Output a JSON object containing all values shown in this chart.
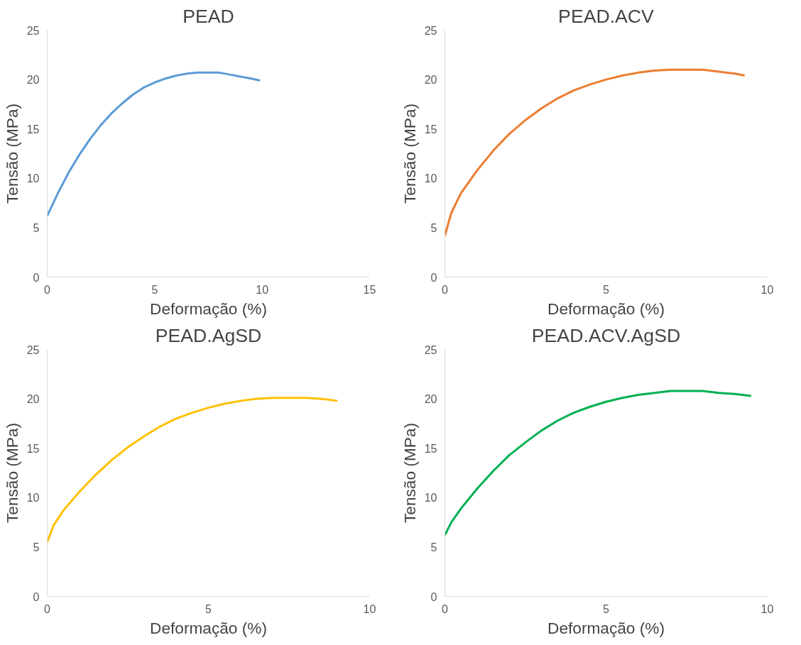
{
  "chart_data": [
    {
      "type": "line",
      "title": "PEAD",
      "xlabel": "Deformação (%)",
      "ylabel": "Tensão (MPa)",
      "xlim": [
        0,
        15
      ],
      "xticks": [
        0,
        5,
        10,
        15
      ],
      "ylim": [
        0,
        25
      ],
      "yticks": [
        0,
        5,
        10,
        15,
        20,
        25
      ],
      "grid": false,
      "marker": "none",
      "line_style": "solid",
      "series": [
        {
          "color": "#5b9bd5",
          "x": [
            0,
            0.5,
            1,
            1.5,
            2,
            2.5,
            3,
            3.5,
            4,
            4.5,
            5,
            5.5,
            6,
            6.5,
            7,
            7.5,
            8,
            8.5,
            9,
            9.5,
            9.9
          ],
          "values": [
            6.2,
            8.5,
            10.6,
            12.4,
            14.0,
            15.4,
            16.6,
            17.6,
            18.5,
            19.2,
            19.7,
            20.1,
            20.4,
            20.6,
            20.7,
            20.7,
            20.7,
            20.5,
            20.3,
            20.1,
            19.9
          ]
        }
      ]
    },
    {
      "type": "line",
      "title": "PEAD.ACV",
      "xlabel": "Deformação (%)",
      "ylabel": "Tensão (MPa)",
      "xlim": [
        0,
        10
      ],
      "xticks": [
        0,
        5,
        10
      ],
      "ylim": [
        0,
        25
      ],
      "yticks": [
        0,
        5,
        10,
        15,
        20,
        25
      ],
      "grid": false,
      "marker": "none",
      "line_style": "solid",
      "series": [
        {
          "color": "#ed7d31",
          "x": [
            0,
            0.2,
            0.5,
            1,
            1.5,
            2,
            2.5,
            3,
            3.5,
            4,
            4.5,
            5,
            5.5,
            6,
            6.5,
            7,
            7.5,
            8,
            8.5,
            9,
            9.3
          ],
          "values": [
            4.2,
            6.5,
            8.5,
            10.8,
            12.8,
            14.5,
            15.9,
            17.1,
            18.1,
            18.9,
            19.5,
            20.0,
            20.4,
            20.7,
            20.9,
            21.0,
            21.0,
            21.0,
            20.8,
            20.6,
            20.4
          ]
        }
      ]
    },
    {
      "type": "line",
      "title": "PEAD.AgSD",
      "xlabel": "Deformação (%)",
      "ylabel": "Tensão (MPa)",
      "xlim": [
        0,
        10
      ],
      "xticks": [
        0,
        5,
        10
      ],
      "ylim": [
        0,
        25
      ],
      "yticks": [
        0,
        5,
        10,
        15,
        20,
        25
      ],
      "grid": false,
      "marker": "none",
      "line_style": "solid",
      "series": [
        {
          "color": "#ffc000",
          "x": [
            0,
            0.2,
            0.5,
            1,
            1.5,
            2,
            2.5,
            3,
            3.5,
            4,
            4.5,
            5,
            5.5,
            6,
            6.5,
            7,
            7.5,
            8,
            8.5,
            9
          ],
          "values": [
            5.5,
            7.2,
            8.7,
            10.6,
            12.3,
            13.8,
            15.1,
            16.2,
            17.2,
            18.0,
            18.6,
            19.1,
            19.5,
            19.8,
            20.0,
            20.1,
            20.1,
            20.1,
            20.0,
            19.8
          ]
        }
      ]
    },
    {
      "type": "line",
      "title": "PEAD.ACV.AgSD",
      "xlabel": "Deformação (%)",
      "ylabel": "Tensão (MPa)",
      "xlim": [
        0,
        10
      ],
      "xticks": [
        0,
        5,
        10
      ],
      "ylim": [
        0,
        25
      ],
      "yticks": [
        0,
        5,
        10,
        15,
        20,
        25
      ],
      "grid": false,
      "marker": "none",
      "line_style": "solid",
      "series": [
        {
          "color": "#00b050",
          "x": [
            0,
            0.2,
            0.5,
            1,
            1.5,
            2,
            2.5,
            3,
            3.5,
            4,
            4.5,
            5,
            5.5,
            6,
            6.5,
            7,
            7.5,
            8,
            8.5,
            9,
            9.5
          ],
          "values": [
            6.2,
            7.5,
            8.9,
            10.9,
            12.7,
            14.3,
            15.6,
            16.8,
            17.8,
            18.6,
            19.2,
            19.7,
            20.1,
            20.4,
            20.6,
            20.8,
            20.8,
            20.8,
            20.6,
            20.5,
            20.3
          ]
        }
      ]
    }
  ]
}
